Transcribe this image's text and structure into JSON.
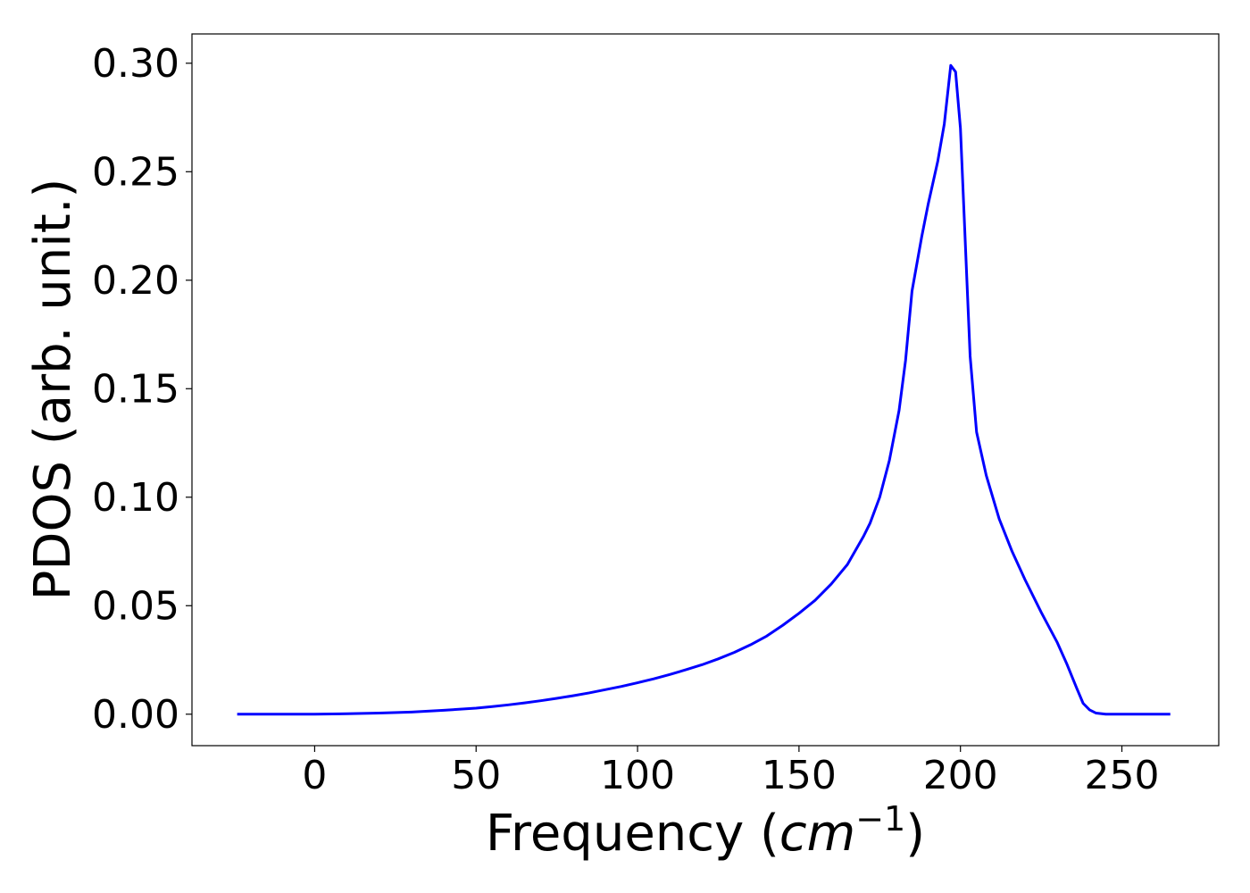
{
  "chart_data": {
    "type": "line",
    "title": "",
    "xlabel": "Frequency (",
    "xlabel_italic": "cm",
    "xlabel_sup": "−1",
    "xlabel_close": ")",
    "ylabel": "PDOS (arb. unit.)",
    "xlim": [
      -38,
      280
    ],
    "ylim": [
      -0.0145,
      0.3135
    ],
    "xticks": [
      0,
      50,
      100,
      150,
      200,
      250
    ],
    "xtick_labels": [
      "0",
      "50",
      "100",
      "150",
      "200",
      "250"
    ],
    "yticks": [
      0.0,
      0.05,
      0.1,
      0.15,
      0.2,
      0.25,
      0.3
    ],
    "ytick_labels": [
      "0.00",
      "0.05",
      "0.10",
      "0.15",
      "0.20",
      "0.25",
      "0.30"
    ],
    "grid": false,
    "line_color": "#0000ff",
    "series": [
      {
        "x": [
          -24,
          -10,
          0,
          10,
          20,
          30,
          40,
          50,
          55,
          60,
          65,
          70,
          75,
          80,
          85,
          90,
          95,
          100,
          105,
          110,
          115,
          120,
          125,
          130,
          135,
          140,
          145,
          150,
          155,
          160,
          165,
          170,
          172,
          175,
          178,
          181,
          183,
          185,
          188,
          190,
          193,
          195,
          197,
          198.5,
          200,
          202,
          203,
          205,
          208,
          212,
          216,
          220,
          225,
          230,
          233,
          236,
          238,
          240,
          242,
          245,
          250,
          260,
          265
        ],
        "y": [
          0.0,
          0.0,
          0.0,
          0.0002,
          0.0005,
          0.001,
          0.0018,
          0.0028,
          0.0035,
          0.0043,
          0.0052,
          0.0062,
          0.0073,
          0.0085,
          0.0098,
          0.0113,
          0.0128,
          0.0145,
          0.0163,
          0.0183,
          0.0205,
          0.0228,
          0.0255,
          0.0285,
          0.032,
          0.036,
          0.041,
          0.0465,
          0.0525,
          0.06,
          0.069,
          0.082,
          0.088,
          0.1,
          0.117,
          0.14,
          0.163,
          0.195,
          0.22,
          0.235,
          0.255,
          0.272,
          0.299,
          0.296,
          0.27,
          0.2,
          0.165,
          0.13,
          0.11,
          0.09,
          0.075,
          0.062,
          0.047,
          0.033,
          0.023,
          0.012,
          0.005,
          0.002,
          0.0005,
          0.0,
          0.0,
          0.0,
          0.0
        ]
      }
    ]
  }
}
